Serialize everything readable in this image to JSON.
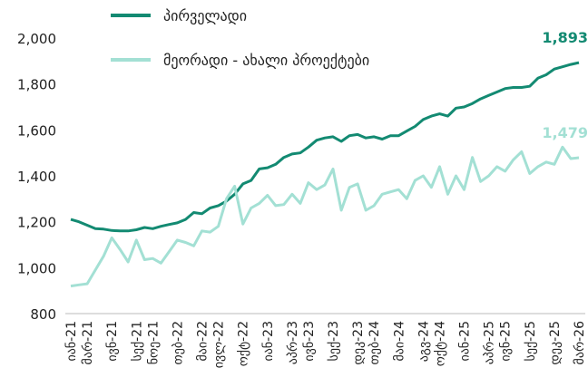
{
  "chart_data": {
    "type": "line",
    "categories": [
      "იან-21",
      null,
      "მარ-21",
      null,
      null,
      "ივნ-21",
      null,
      null,
      "სექ-21",
      null,
      "ნოე-21",
      null,
      null,
      "თებ-22",
      null,
      null,
      "მაი-22",
      null,
      "ივლ-22",
      null,
      null,
      "ოქტ-22",
      null,
      null,
      "იან-23",
      null,
      null,
      "აპრ-23",
      null,
      "ივნ-23",
      null,
      null,
      "სექ-23",
      null,
      null,
      "დეკ-23",
      null,
      "თებ-24",
      null,
      null,
      "მაი-24",
      null,
      null,
      "აგვ-24",
      null,
      "ოქტ-24",
      null,
      null,
      "იან-25",
      null,
      null,
      "აპრ-25",
      null,
      "ივნ-25",
      null,
      null,
      "სექ-25",
      null,
      null,
      "დეკ-25",
      null,
      null,
      "მარ-26"
    ],
    "series": [
      {
        "name": "პირველადი",
        "color": "#138a72",
        "values": [
          1210,
          1200,
          1185,
          1170,
          1168,
          1162,
          1160,
          1160,
          1165,
          1175,
          1170,
          1180,
          1188,
          1195,
          1210,
          1240,
          1235,
          1260,
          1270,
          1290,
          1320,
          1365,
          1380,
          1430,
          1435,
          1450,
          1480,
          1495,
          1500,
          1525,
          1555,
          1565,
          1570,
          1550,
          1575,
          1580,
          1565,
          1570,
          1560,
          1575,
          1575,
          1595,
          1615,
          1645,
          1660,
          1670,
          1660,
          1695,
          1700,
          1715,
          1735,
          1750,
          1765,
          1780,
          1785,
          1785,
          1790,
          1825,
          1840,
          1865,
          1875,
          1885,
          1893
        ],
        "value_labels": {
          "62": "1,893"
        }
      },
      {
        "name": "მეორადი - ახალი პროექტები",
        "color": "#a3e0d4",
        "values": [
          920,
          925,
          930,
          990,
          1050,
          1130,
          1080,
          1025,
          1120,
          1035,
          1040,
          1020,
          1070,
          1120,
          1110,
          1095,
          1160,
          1155,
          1180,
          1300,
          1355,
          1190,
          1260,
          1280,
          1315,
          1270,
          1275,
          1320,
          1280,
          1370,
          1340,
          1360,
          1430,
          1250,
          1350,
          1365,
          1250,
          1270,
          1320,
          1330,
          1340,
          1300,
          1380,
          1400,
          1350,
          1440,
          1320,
          1400,
          1340,
          1480,
          1375,
          1400,
          1440,
          1420,
          1470,
          1505,
          1410,
          1440,
          1460,
          1450,
          1525,
          1475,
          1479
        ],
        "value_labels": {
          "62": "1,479"
        }
      }
    ],
    "ylim": [
      800,
      2000
    ],
    "yticks": [
      800,
      {
        "value": 1000,
        "label": "1,000"
      },
      {
        "value": 1200,
        "label": "1,200"
      },
      {
        "value": 1400,
        "label": "1,400"
      },
      {
        "value": 1600,
        "label": "1,600"
      },
      {
        "value": 1800,
        "label": "1,800"
      },
      {
        "value": 2000,
        "label": "2,000"
      }
    ],
    "grid": false
  }
}
